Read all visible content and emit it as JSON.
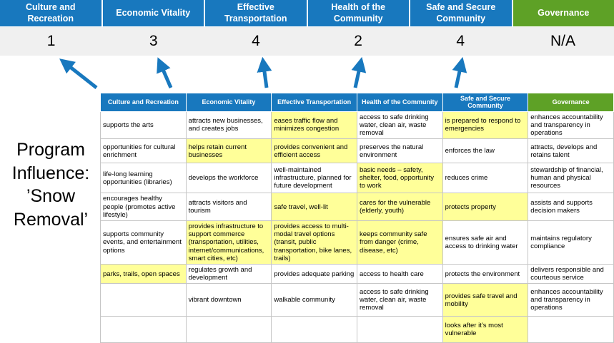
{
  "title": "Program Influence: ’Snow Removal’",
  "colors": {
    "blue": "#1878BE",
    "green": "#5EA126",
    "highlight": "#FFFF99",
    "score_bg": "#F0F0F0",
    "arrow": "#1878BE",
    "grid": "#C6C6C6"
  },
  "summary": {
    "columns": [
      {
        "label": "Culture and Recreation",
        "score": "1",
        "theme": "blue"
      },
      {
        "label": "Economic Vitality",
        "score": "3",
        "theme": "blue"
      },
      {
        "label": "Effective Transportation",
        "score": "4",
        "theme": "blue"
      },
      {
        "label": "Health of the Community",
        "score": "2",
        "theme": "blue"
      },
      {
        "label": "Safe and Secure Community",
        "score": "4",
        "theme": "blue"
      },
      {
        "label": "Governance",
        "score": "N/A",
        "theme": "green"
      }
    ]
  },
  "matrix": {
    "headers": [
      {
        "label": "Culture and Recreation",
        "theme": "blue"
      },
      {
        "label": "Economic Vitality",
        "theme": "blue"
      },
      {
        "label": "Effective Transportation",
        "theme": "blue"
      },
      {
        "label": "Health of the Community",
        "theme": "blue"
      },
      {
        "label": "Safe and Secure Community",
        "theme": "blue"
      },
      {
        "label": "Governance",
        "theme": "green"
      }
    ],
    "rows": [
      [
        {
          "text": "supports the arts",
          "highlight": false
        },
        {
          "text": "attracts new businesses, and creates jobs",
          "highlight": false
        },
        {
          "text": "eases traffic flow and minimizes congestion",
          "highlight": true
        },
        {
          "text": "access to safe drinking water, clean air, waste removal",
          "highlight": false
        },
        {
          "text": "is prepared to respond to emergencies",
          "highlight": true
        },
        {
          "text": "enhances accountability and transparency in operations",
          "highlight": false
        }
      ],
      [
        {
          "text": "opportunities for cultural enrichment",
          "highlight": false
        },
        {
          "text": "helps retain current businesses",
          "highlight": true
        },
        {
          "text": "provides convenient and efficient access",
          "highlight": true
        },
        {
          "text": "preserves the natural environment",
          "highlight": false
        },
        {
          "text": "enforces the law",
          "highlight": false
        },
        {
          "text": "attracts, develops and retains talent",
          "highlight": false
        }
      ],
      [
        {
          "text": "life-long learning opportunities (libraries)",
          "highlight": false
        },
        {
          "text": "develops the workforce",
          "highlight": false
        },
        {
          "text": "well-maintained infrastructure, planned for future development",
          "highlight": false
        },
        {
          "text": "basic needs – safety, shelter, food, opportunity to work",
          "highlight": true
        },
        {
          "text": "reduces crime",
          "highlight": false
        },
        {
          "text": "stewardship of financial, human and physical resources",
          "highlight": false
        }
      ],
      [
        {
          "text": "encourages healthy people (promotes active lifestyle)",
          "highlight": false
        },
        {
          "text": "attracts visitors and tourism",
          "highlight": false
        },
        {
          "text": "safe travel, well-lit",
          "highlight": true
        },
        {
          "text": "cares for the vulnerable (elderly, youth)",
          "highlight": true
        },
        {
          "text": "protects property",
          "highlight": true
        },
        {
          "text": "assists and supports decision makers",
          "highlight": false
        }
      ],
      [
        {
          "text": "supports community events, and entertainment options",
          "highlight": false
        },
        {
          "text": "provides infrastructure to support commerce (transportation, utilities, internet/communications, smart cities, etc)",
          "highlight": true
        },
        {
          "text": "provides access to multi-modal travel options (transit, public transportation, bike lanes, trails)",
          "highlight": true
        },
        {
          "text": "keeps community safe from danger (crime, disease, etc)",
          "highlight": true
        },
        {
          "text": "ensures safe air and access to drinking water",
          "highlight": false
        },
        {
          "text": "maintains regulatory compliance",
          "highlight": false
        }
      ],
      [
        {
          "text": "parks, trails, open spaces",
          "highlight": true
        },
        {
          "text": "regulates growth and development",
          "highlight": false
        },
        {
          "text": "provides adequate parking",
          "highlight": false
        },
        {
          "text": "access to health care",
          "highlight": false
        },
        {
          "text": "protects the environment",
          "highlight": false
        },
        {
          "text": "delivers responsible and courteous service",
          "highlight": false
        }
      ],
      [
        {
          "text": "",
          "highlight": false
        },
        {
          "text": "vibrant downtown",
          "highlight": false
        },
        {
          "text": "walkable community",
          "highlight": false
        },
        {
          "text": "access to safe drinking water, clean air, waste removal",
          "highlight": false
        },
        {
          "text": "provides safe travel and mobility",
          "highlight": true
        },
        {
          "text": "enhances accountability and transparency in operations",
          "highlight": false
        }
      ],
      [
        {
          "text": "",
          "highlight": false
        },
        {
          "text": "",
          "highlight": false
        },
        {
          "text": "",
          "highlight": false
        },
        {
          "text": "",
          "highlight": false
        },
        {
          "text": "looks after it’s most vulnerable",
          "highlight": true
        },
        {
          "text": "",
          "highlight": false
        }
      ]
    ]
  }
}
